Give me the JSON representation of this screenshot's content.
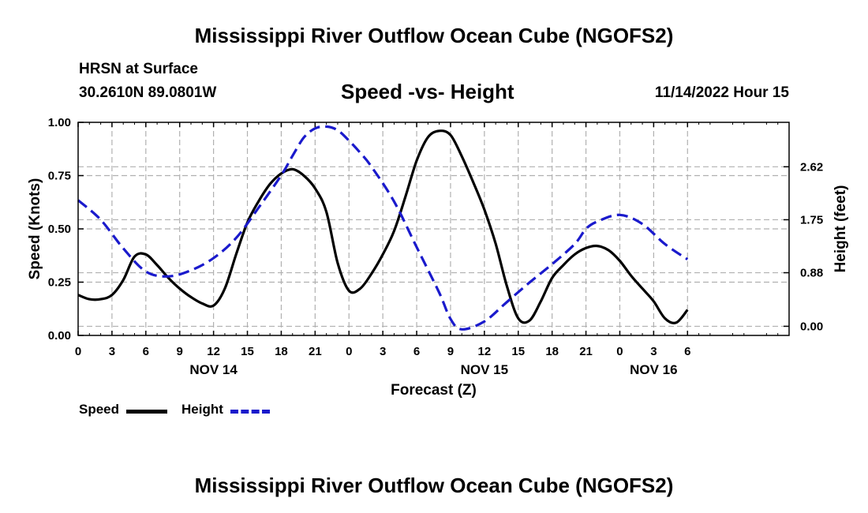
{
  "page": {
    "title": "Mississippi River Outflow Ocean Cube (NGOFS2)",
    "footer_title": "Mississippi River Outflow Ocean Cube (NGOFS2)",
    "station": "HRSN at Surface",
    "coords": "30.2610N  89.0801W",
    "subtitle": "Speed -vs- Height",
    "datetime": "11/14/2022 Hour 15"
  },
  "legend": {
    "speed_label": "Speed",
    "height_label": "Height"
  },
  "colors": {
    "speed": "#000000",
    "height": "#1a1acc",
    "grid": "#b0b0b0"
  },
  "chart_data": {
    "type": "line",
    "title": "Speed -vs- Height",
    "xlabel": "Forecast (Z)",
    "ylabel": "Speed (Knots)",
    "y2label": "Height (feet)",
    "x_range": [
      0,
      63
    ],
    "ylim": [
      0,
      1.0
    ],
    "y2lim": [
      -0.15,
      3.35
    ],
    "grid": true,
    "x_ticks": [
      {
        "x": 0,
        "label": "0"
      },
      {
        "x": 3,
        "label": "3"
      },
      {
        "x": 6,
        "label": "6"
      },
      {
        "x": 9,
        "label": "9"
      },
      {
        "x": 12,
        "label": "12"
      },
      {
        "x": 15,
        "label": "15"
      },
      {
        "x": 18,
        "label": "18"
      },
      {
        "x": 21,
        "label": "21"
      },
      {
        "x": 24,
        "label": "0"
      },
      {
        "x": 27,
        "label": "3"
      },
      {
        "x": 30,
        "label": "6"
      },
      {
        "x": 33,
        "label": "9"
      },
      {
        "x": 36,
        "label": "12"
      },
      {
        "x": 39,
        "label": "15"
      },
      {
        "x": 42,
        "label": "18"
      },
      {
        "x": 45,
        "label": "21"
      },
      {
        "x": 48,
        "label": "0"
      },
      {
        "x": 51,
        "label": "3"
      },
      {
        "x": 54,
        "label": "6"
      }
    ],
    "day_labels": [
      {
        "x": 12,
        "label": "NOV 14"
      },
      {
        "x": 36,
        "label": "NOV 15"
      },
      {
        "x": 51,
        "label": "NOV 16"
      }
    ],
    "y_ticks": [
      {
        "value": 0.0,
        "label": "0.00"
      },
      {
        "value": 0.25,
        "label": "0.25"
      },
      {
        "value": 0.5,
        "label": "0.50"
      },
      {
        "value": 0.75,
        "label": "0.75"
      },
      {
        "value": 1.0,
        "label": "1.00"
      }
    ],
    "y2_ticks": [
      {
        "value": 0.0,
        "label": "0.00"
      },
      {
        "value": 0.88,
        "label": "0.88"
      },
      {
        "value": 1.75,
        "label": "1.75"
      },
      {
        "value": 2.62,
        "label": "2.62"
      }
    ],
    "series": [
      {
        "name": "Speed",
        "axis": "left",
        "style": "solid",
        "x": [
          0,
          1,
          2,
          3,
          4,
          5,
          6,
          7,
          8,
          9,
          10,
          11,
          12,
          13,
          14,
          15,
          16,
          17,
          18,
          19,
          20,
          21,
          22,
          23,
          24,
          25,
          26,
          27,
          28,
          29,
          30,
          31,
          32,
          33,
          34,
          35,
          36,
          37,
          38,
          39,
          40,
          41,
          42,
          43,
          44,
          45,
          46,
          47,
          48,
          49,
          50,
          51,
          52,
          53,
          54
        ],
        "values": [
          0.19,
          0.17,
          0.17,
          0.19,
          0.26,
          0.37,
          0.38,
          0.33,
          0.27,
          0.22,
          0.18,
          0.15,
          0.14,
          0.22,
          0.38,
          0.53,
          0.63,
          0.71,
          0.76,
          0.78,
          0.75,
          0.69,
          0.58,
          0.34,
          0.21,
          0.22,
          0.29,
          0.38,
          0.49,
          0.65,
          0.82,
          0.93,
          0.96,
          0.94,
          0.84,
          0.72,
          0.59,
          0.43,
          0.23,
          0.08,
          0.07,
          0.16,
          0.27,
          0.33,
          0.38,
          0.41,
          0.42,
          0.4,
          0.35,
          0.28,
          0.22,
          0.16,
          0.08,
          0.06,
          0.12
        ]
      },
      {
        "name": "Height",
        "axis": "right",
        "style": "dashed",
        "x": [
          0,
          2,
          4,
          6,
          8,
          10,
          12,
          14,
          16,
          18,
          19,
          20,
          21,
          22,
          23,
          24,
          25,
          26,
          28,
          30,
          32,
          33,
          34,
          36,
          38,
          40,
          42,
          44,
          45,
          46,
          48,
          50,
          52,
          54
        ],
        "values": [
          2.07,
          1.75,
          1.28,
          0.9,
          0.82,
          0.92,
          1.12,
          1.45,
          1.95,
          2.48,
          2.8,
          3.1,
          3.25,
          3.28,
          3.22,
          3.05,
          2.85,
          2.62,
          2.05,
          1.3,
          0.55,
          0.12,
          -0.05,
          0.08,
          0.4,
          0.72,
          1.02,
          1.35,
          1.6,
          1.72,
          1.83,
          1.68,
          1.35,
          1.1
        ]
      }
    ]
  }
}
